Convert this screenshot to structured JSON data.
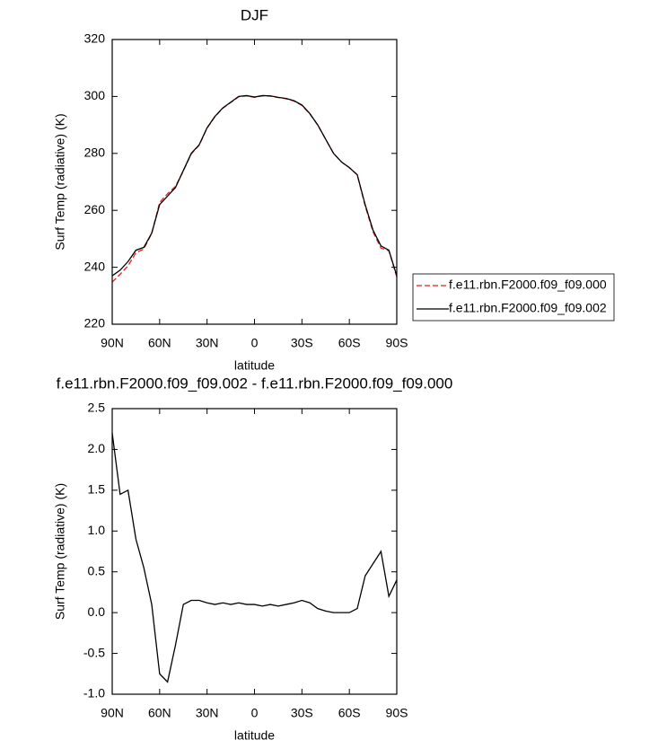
{
  "chart_data": [
    {
      "type": "line",
      "title": "DJF",
      "xlabel": "latitude",
      "ylabel": "Surf Temp (radiative) (K)",
      "x": [
        90,
        85,
        80,
        75,
        70,
        65,
        60,
        55,
        50,
        45,
        40,
        35,
        30,
        25,
        20,
        15,
        10,
        5,
        0,
        -5,
        -10,
        -15,
        -20,
        -25,
        -30,
        -35,
        -40,
        -45,
        -50,
        -55,
        -60,
        -65,
        -70,
        -75,
        -80,
        -85,
        -90
      ],
      "series": [
        {
          "name": "f.e11.rbn.F2000.f09_f09.000",
          "color": "#e0201b",
          "dash": true,
          "values": [
            234.8,
            237.55,
            240.5,
            245.1,
            246.45,
            251.9,
            262.75,
            265.85,
            268.4,
            273.9,
            279.85,
            282.85,
            288.88,
            292.9,
            295.88,
            297.9,
            299.88,
            300.2,
            299.7,
            300.22,
            300.1,
            299.62,
            299.2,
            298.38,
            296.85,
            293.88,
            289.95,
            284.98,
            280,
            277,
            275,
            272.45,
            261.55,
            252.4,
            246.75,
            245.8,
            236.6
          ]
        },
        {
          "name": "f.e11.rbn.F2000.f09_f09.002",
          "color": "#000000",
          "dash": false,
          "values": [
            237,
            239,
            242,
            246,
            247,
            252,
            262,
            265,
            268,
            274,
            280,
            283,
            289,
            293,
            296,
            298,
            300,
            300.3,
            299.8,
            300.3,
            300.2,
            299.7,
            299.3,
            298.5,
            297,
            294,
            290,
            285,
            280,
            277,
            275,
            272.5,
            262,
            253,
            247.5,
            246,
            237
          ]
        }
      ],
      "xlim": [
        90,
        -90
      ],
      "xticks": [
        {
          "value": 90,
          "label": "90N"
        },
        {
          "value": 60,
          "label": "60N"
        },
        {
          "value": 30,
          "label": "30N"
        },
        0,
        {
          "value": -30,
          "label": "30S"
        },
        {
          "value": -60,
          "label": "60S"
        },
        {
          "value": -90,
          "label": "90S"
        }
      ],
      "ylim": [
        220,
        320
      ],
      "yticks": [
        220,
        240,
        260,
        280,
        300,
        320
      ]
    },
    {
      "type": "line",
      "title": "f.e11.rbn.F2000.f09_f09.002 - f.e11.rbn.F2000.f09_f09.000",
      "xlabel": "latitude",
      "ylabel": "Surf Temp (radiative) (K)",
      "x": [
        90,
        85,
        80,
        75,
        70,
        65,
        60,
        55,
        50,
        45,
        40,
        35,
        30,
        25,
        20,
        15,
        10,
        5,
        0,
        -5,
        -10,
        -15,
        -20,
        -25,
        -30,
        -35,
        -40,
        -45,
        -50,
        -55,
        -60,
        -65,
        -70,
        -75,
        -80,
        -85,
        -90
      ],
      "series": [
        {
          "color": "#000000",
          "dash": false,
          "values": [
            2.2,
            1.45,
            1.5,
            0.9,
            0.55,
            0.1,
            -0.75,
            -0.85,
            -0.4,
            0.1,
            0.15,
            0.15,
            0.12,
            0.1,
            0.12,
            0.1,
            0.12,
            0.1,
            0.1,
            0.08,
            0.1,
            0.08,
            0.1,
            0.12,
            0.15,
            0.12,
            0.05,
            0.02,
            0,
            0,
            0,
            0.05,
            0.45,
            0.6,
            0.75,
            0.2,
            0.4
          ]
        }
      ],
      "xlim": [
        90,
        -90
      ],
      "xticks": [
        {
          "value": 90,
          "label": "90N"
        },
        {
          "value": 60,
          "label": "60N"
        },
        {
          "value": 30,
          "label": "30N"
        },
        0,
        {
          "value": -30,
          "label": "30S"
        },
        {
          "value": -60,
          "label": "60S"
        },
        {
          "value": -90,
          "label": "90S"
        }
      ],
      "ylim": [
        -1,
        2.5
      ],
      "yticks": [
        {
          "value": -1,
          "label": "-1.0"
        },
        -0.5,
        {
          "value": 0,
          "label": "0.0"
        },
        0.5,
        {
          "value": 1,
          "label": "1.0"
        },
        1.5,
        {
          "value": 2,
          "label": "2.0"
        },
        2.5
      ]
    }
  ]
}
